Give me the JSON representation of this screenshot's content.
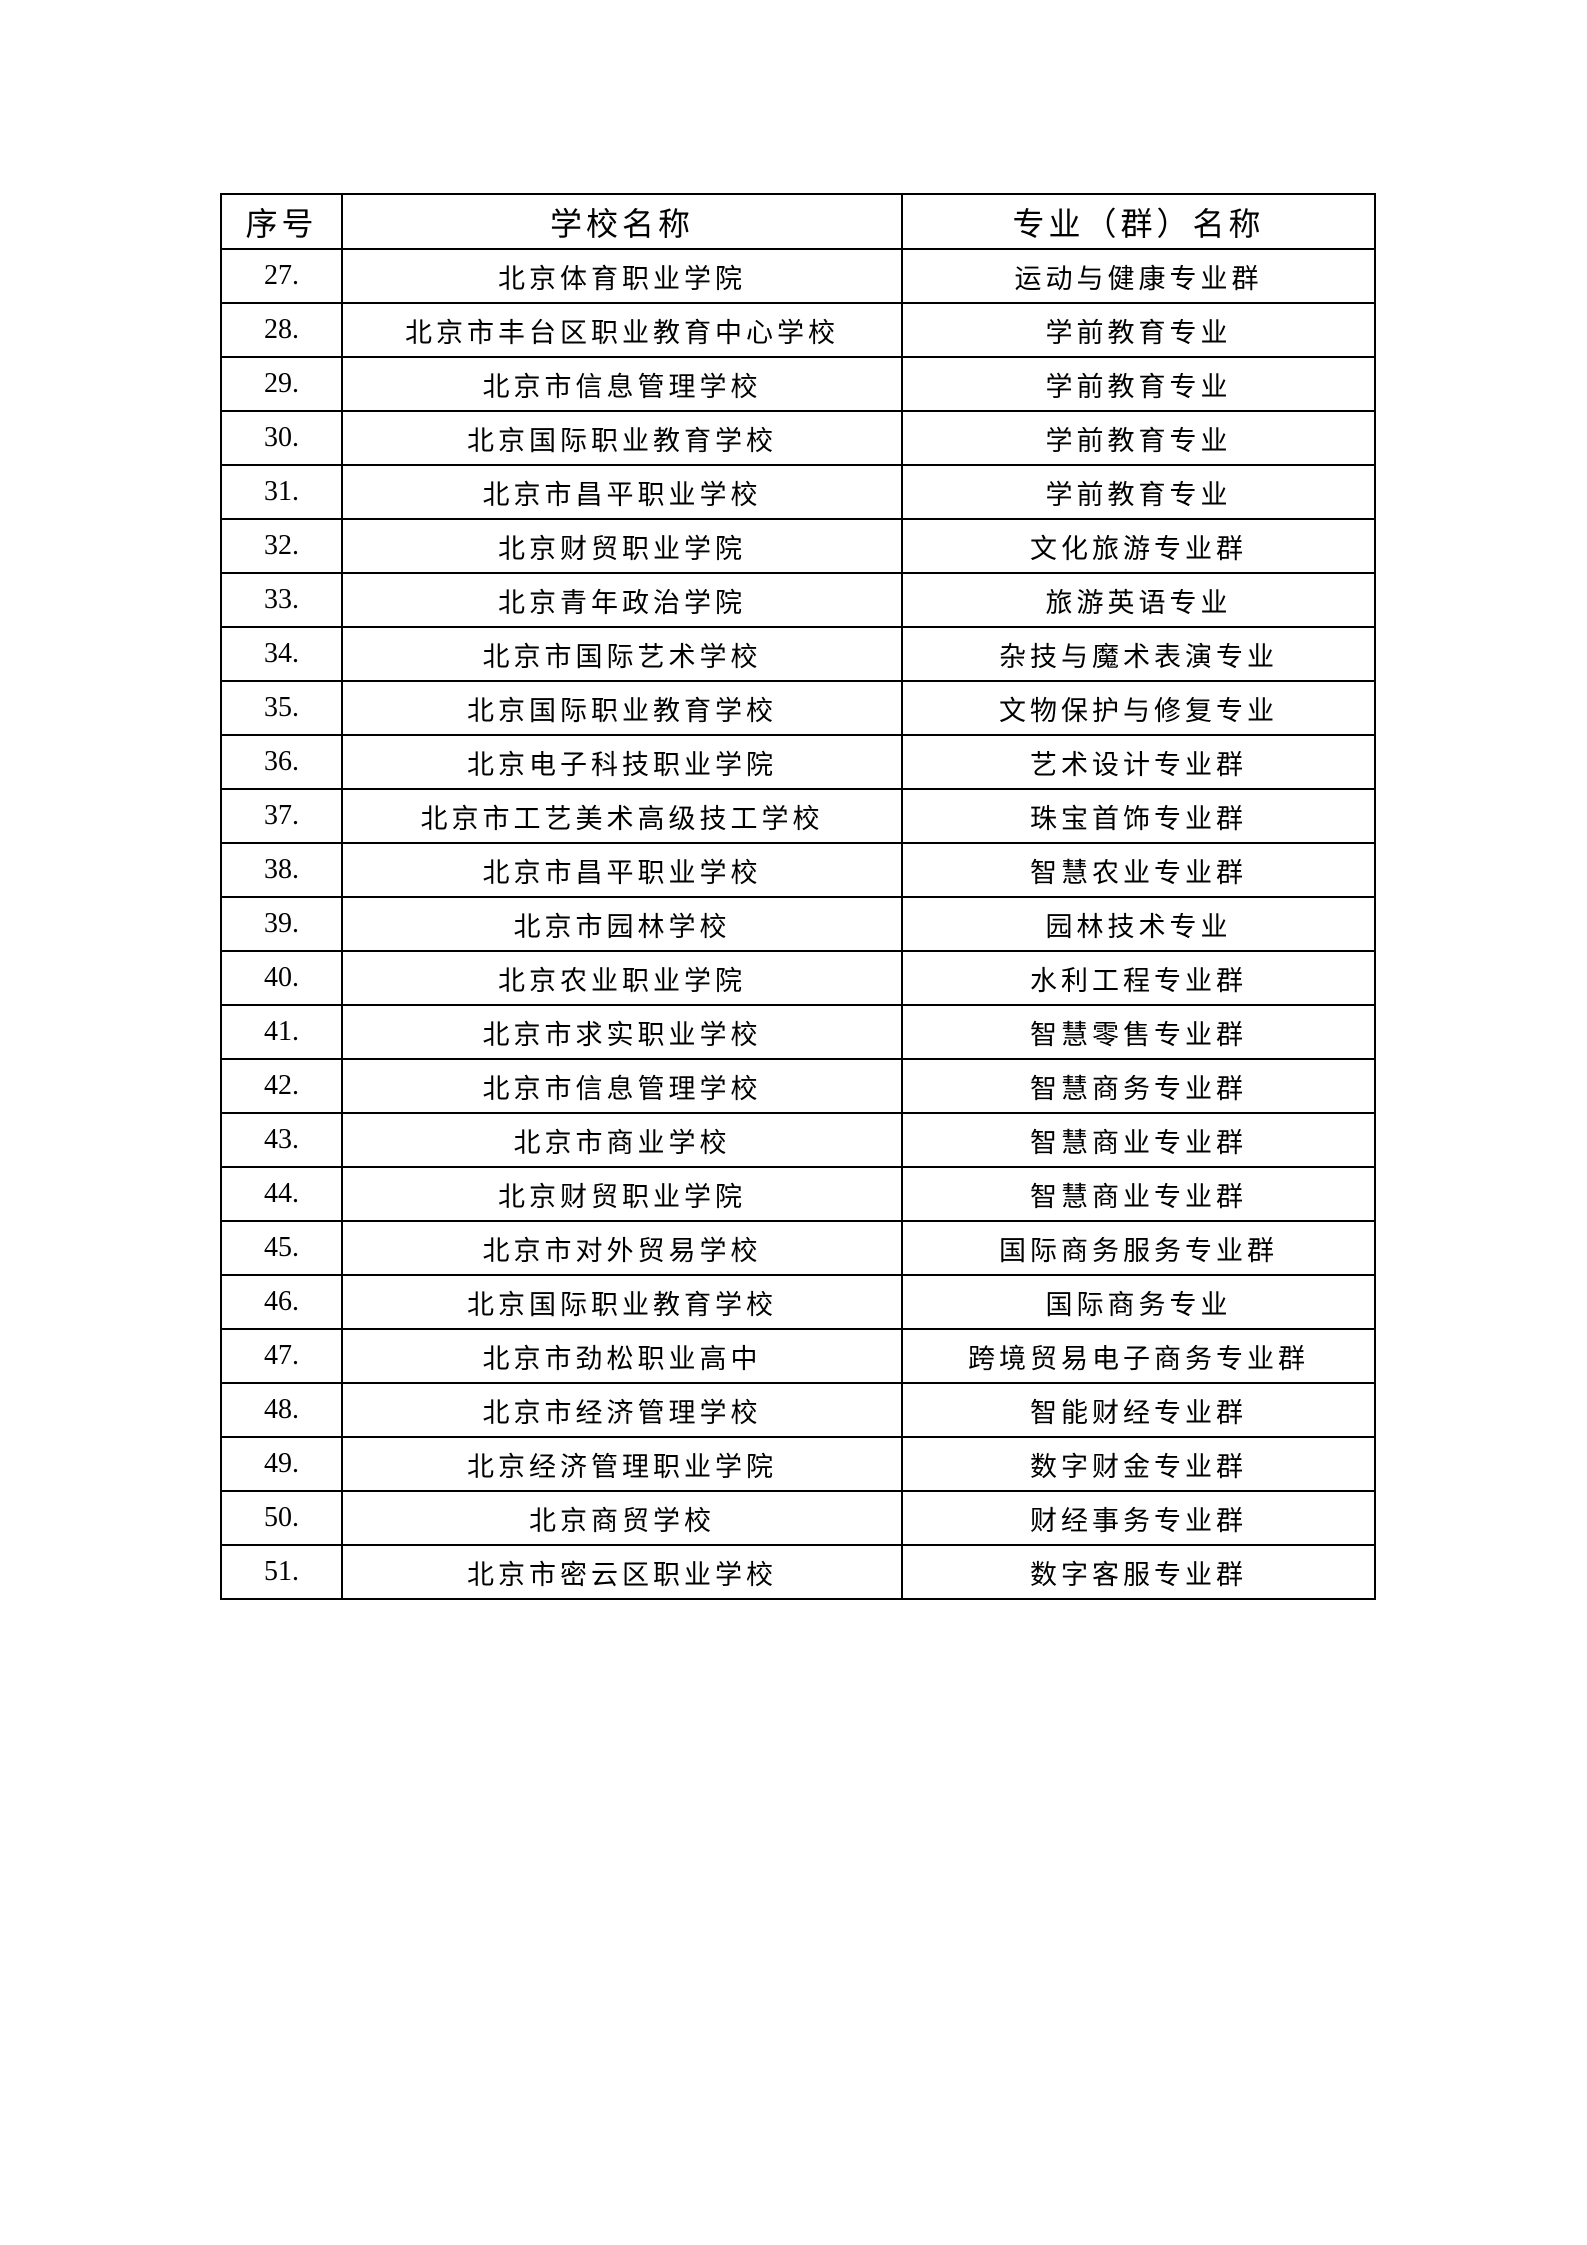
{
  "table": {
    "headers": [
      "序号",
      "学校名称",
      "专业（群）名称"
    ],
    "rows": [
      [
        "27.",
        "北京体育职业学院",
        "运动与健康专业群"
      ],
      [
        "28.",
        "北京市丰台区职业教育中心学校",
        "学前教育专业"
      ],
      [
        "29.",
        "北京市信息管理学校",
        "学前教育专业"
      ],
      [
        "30.",
        "北京国际职业教育学校",
        "学前教育专业"
      ],
      [
        "31.",
        "北京市昌平职业学校",
        "学前教育专业"
      ],
      [
        "32.",
        "北京财贸职业学院",
        "文化旅游专业群"
      ],
      [
        "33.",
        "北京青年政治学院",
        "旅游英语专业"
      ],
      [
        "34.",
        "北京市国际艺术学校",
        "杂技与魔术表演专业"
      ],
      [
        "35.",
        "北京国际职业教育学校",
        "文物保护与修复专业"
      ],
      [
        "36.",
        "北京电子科技职业学院",
        "艺术设计专业群"
      ],
      [
        "37.",
        "北京市工艺美术高级技工学校",
        "珠宝首饰专业群"
      ],
      [
        "38.",
        "北京市昌平职业学校",
        "智慧农业专业群"
      ],
      [
        "39.",
        "北京市园林学校",
        "园林技术专业"
      ],
      [
        "40.",
        "北京农业职业学院",
        "水利工程专业群"
      ],
      [
        "41.",
        "北京市求实职业学校",
        "智慧零售专业群"
      ],
      [
        "42.",
        "北京市信息管理学校",
        "智慧商务专业群"
      ],
      [
        "43.",
        "北京市商业学校",
        "智慧商业专业群"
      ],
      [
        "44.",
        "北京财贸职业学院",
        "智慧商业专业群"
      ],
      [
        "45.",
        "北京市对外贸易学校",
        "国际商务服务专业群"
      ],
      [
        "46.",
        "北京国际职业教育学校",
        "国际商务专业"
      ],
      [
        "47.",
        "北京市劲松职业高中",
        "跨境贸易电子商务专业群"
      ],
      [
        "48.",
        "北京市经济管理学校",
        "智能财经专业群"
      ],
      [
        "49.",
        "北京经济管理职业学院",
        "数字财金专业群"
      ],
      [
        "50.",
        "北京商贸学校",
        "财经事务专业群"
      ],
      [
        "51.",
        "北京市密云区职业学校",
        "数字客服专业群"
      ]
    ]
  }
}
